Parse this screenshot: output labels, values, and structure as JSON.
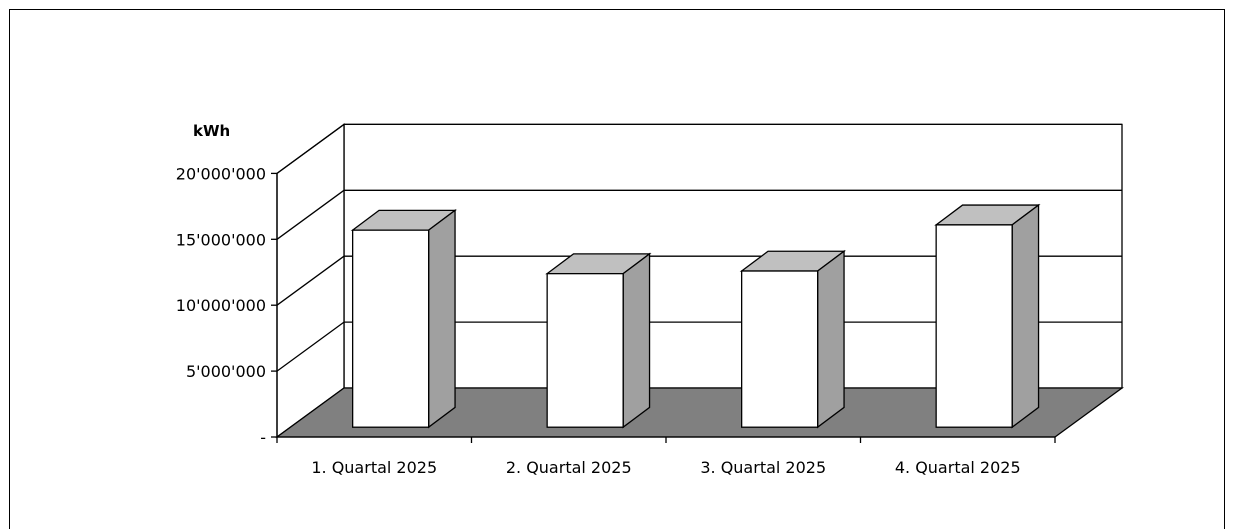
{
  "chart_data": {
    "type": "bar",
    "style": "3d",
    "unit_label": "kWh",
    "categories": [
      "1. Quartal 2025",
      "2. Quartal 2025",
      "3. Quartal 2025",
      "4. Quartal 2025"
    ],
    "values": [
      14950000,
      11650000,
      11850000,
      15350000
    ],
    "ylim": [
      0,
      20000000
    ],
    "y_ticks": [
      0,
      5000000,
      10000000,
      15000000,
      20000000
    ],
    "y_tick_labels": [
      "-",
      "5'000'000",
      "10'000'000",
      "15'000'000",
      "20'000'000"
    ],
    "grid": true,
    "legend": "none",
    "colors": {
      "bar_front": "#ffffff",
      "bar_top": "#c0c0c0",
      "bar_side": "#a0a0a0",
      "floor": "#808080",
      "walls": "#ffffff",
      "lines": "#000000"
    }
  }
}
